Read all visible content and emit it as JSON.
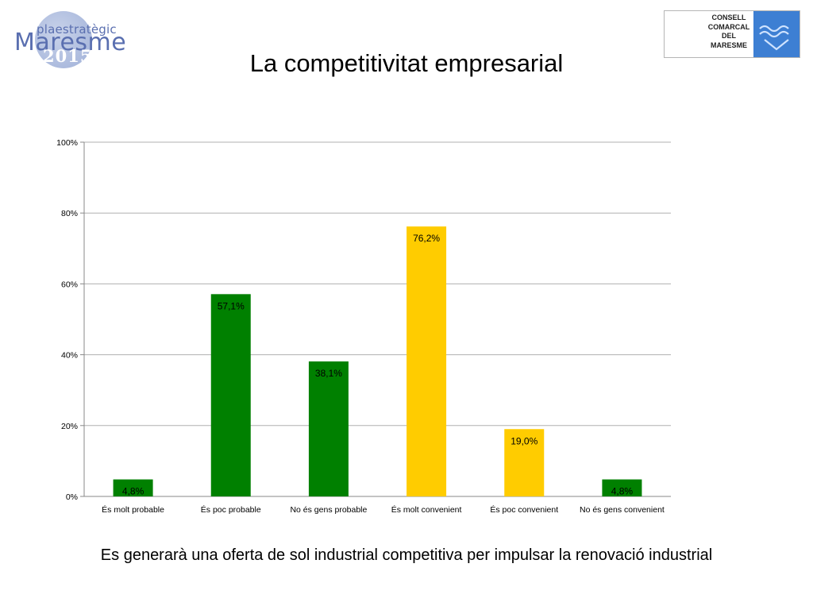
{
  "logo_left": {
    "line1": "plaestratègic",
    "line2": "Maresme",
    "line3": "2015"
  },
  "logo_right": {
    "lines": [
      "CONSELL",
      "COMARCAL",
      "DEL",
      "MARESME"
    ]
  },
  "title": "La competitivitat empresarial",
  "caption": "Es generarà una oferta de sol industrial competitiva per impulsar la renovació industrial",
  "colors": {
    "green": "#008000",
    "yellow": "#ffcc00",
    "grid": "#b0b0b0",
    "axis": "#888888"
  },
  "chart_data": {
    "type": "bar",
    "categories": [
      "És molt probable",
      "És poc probable",
      "No és gens probable",
      "És molt convenient",
      "És poc convenient",
      "No és gens convenient"
    ],
    "values": [
      4.8,
      57.1,
      38.1,
      76.2,
      19.0,
      4.8
    ],
    "labels": [
      "4,8%",
      "57,1%",
      "38,1%",
      "76,2%",
      "19,0%",
      "4,8%"
    ],
    "bar_colors": [
      "green",
      "green",
      "green",
      "yellow",
      "yellow",
      "green"
    ],
    "ylim": [
      0,
      100
    ],
    "yticks": [
      0,
      20,
      40,
      60,
      80,
      100
    ],
    "ytick_labels": [
      "0%",
      "20%",
      "40%",
      "60%",
      "80%",
      "100%"
    ],
    "grid": true,
    "legend": false
  }
}
